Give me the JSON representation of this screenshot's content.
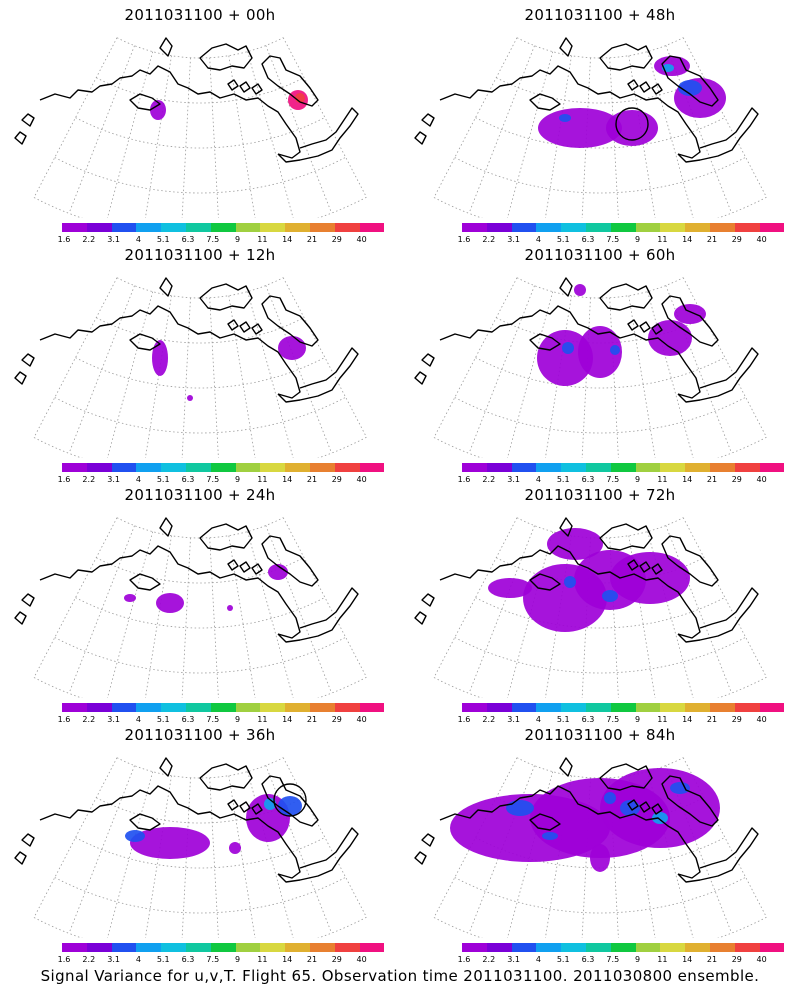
{
  "footer": "Signal Variance for u,v,T. Flight 65. Observation time 2011031100. 2011030800 ensemble.",
  "colorbar": {
    "colors": [
      "#9e00d8",
      "#7a00d8",
      "#2050f0",
      "#10a0f0",
      "#10c0e0",
      "#10c8a0",
      "#10c840",
      "#a0d040",
      "#d8d840",
      "#e0b030",
      "#e88030",
      "#f04040",
      "#f01080"
    ],
    "labels": [
      "1.6",
      "2.2",
      "3.1",
      "4",
      "5.1",
      "6.3",
      "7.5",
      "9",
      "11",
      "14",
      "21",
      "29",
      "40"
    ]
  },
  "panels": [
    {
      "title": "2011031100 + 00h"
    },
    {
      "title": "2011031100 + 48h"
    },
    {
      "title": "2011031100 + 12h"
    },
    {
      "title": "2011031100 + 60h"
    },
    {
      "title": "2011031100 + 24h"
    },
    {
      "title": "2011031100 + 72h"
    },
    {
      "title": "2011031100 + 36h"
    },
    {
      "title": "2011031100 + 84h"
    }
  ]
}
